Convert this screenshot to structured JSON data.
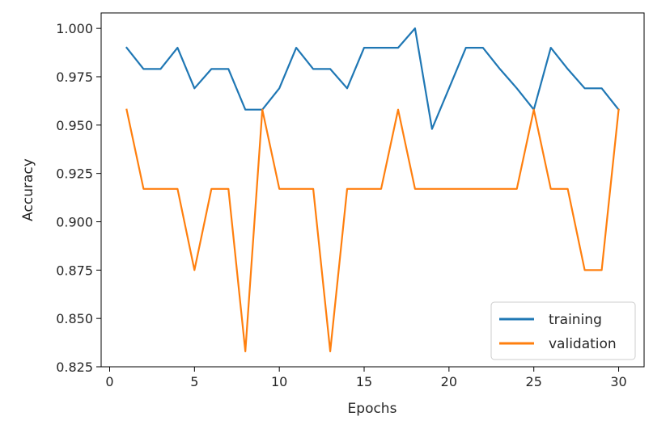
{
  "chart_data": {
    "type": "line",
    "title": "",
    "xlabel": "Epochs",
    "ylabel": "Accuracy",
    "xlim": [
      -0.5,
      31.5
    ],
    "ylim": [
      0.825,
      1.008
    ],
    "x_ticks": [
      0,
      5,
      10,
      15,
      20,
      25,
      30
    ],
    "x_tick_labels": [
      "0",
      "5",
      "10",
      "15",
      "20",
      "25",
      "30"
    ],
    "y_ticks": [
      0.825,
      0.85,
      0.875,
      0.9,
      0.925,
      0.95,
      0.975,
      1.0
    ],
    "y_tick_labels": [
      "0.825",
      "0.850",
      "0.875",
      "0.900",
      "0.925",
      "0.950",
      "0.975",
      "1.000"
    ],
    "grid": false,
    "legend_position": "lower-right",
    "x": [
      1,
      2,
      3,
      4,
      5,
      6,
      7,
      8,
      9,
      10,
      11,
      12,
      13,
      14,
      15,
      16,
      17,
      18,
      19,
      20,
      21,
      22,
      23,
      24,
      25,
      26,
      27,
      28,
      29,
      30
    ],
    "series": [
      {
        "name": "training",
        "color": "#1f77b4",
        "values": [
          0.99,
          0.979,
          0.979,
          0.99,
          0.969,
          0.979,
          0.979,
          0.958,
          0.958,
          0.969,
          0.99,
          0.979,
          0.979,
          0.969,
          0.99,
          0.99,
          0.99,
          1.0,
          0.948,
          0.969,
          0.99,
          0.99,
          0.979,
          0.969,
          0.958,
          0.99,
          0.979,
          0.969,
          0.969,
          0.958
        ]
      },
      {
        "name": "validation",
        "color": "#ff7f0e",
        "values": [
          0.958,
          0.917,
          0.917,
          0.917,
          0.875,
          0.917,
          0.917,
          0.833,
          0.958,
          0.917,
          0.917,
          0.917,
          0.833,
          0.917,
          0.917,
          0.917,
          0.958,
          0.917,
          0.917,
          0.917,
          0.917,
          0.917,
          0.917,
          0.917,
          0.958,
          0.917,
          0.917,
          0.875,
          0.875,
          0.958
        ]
      }
    ]
  }
}
